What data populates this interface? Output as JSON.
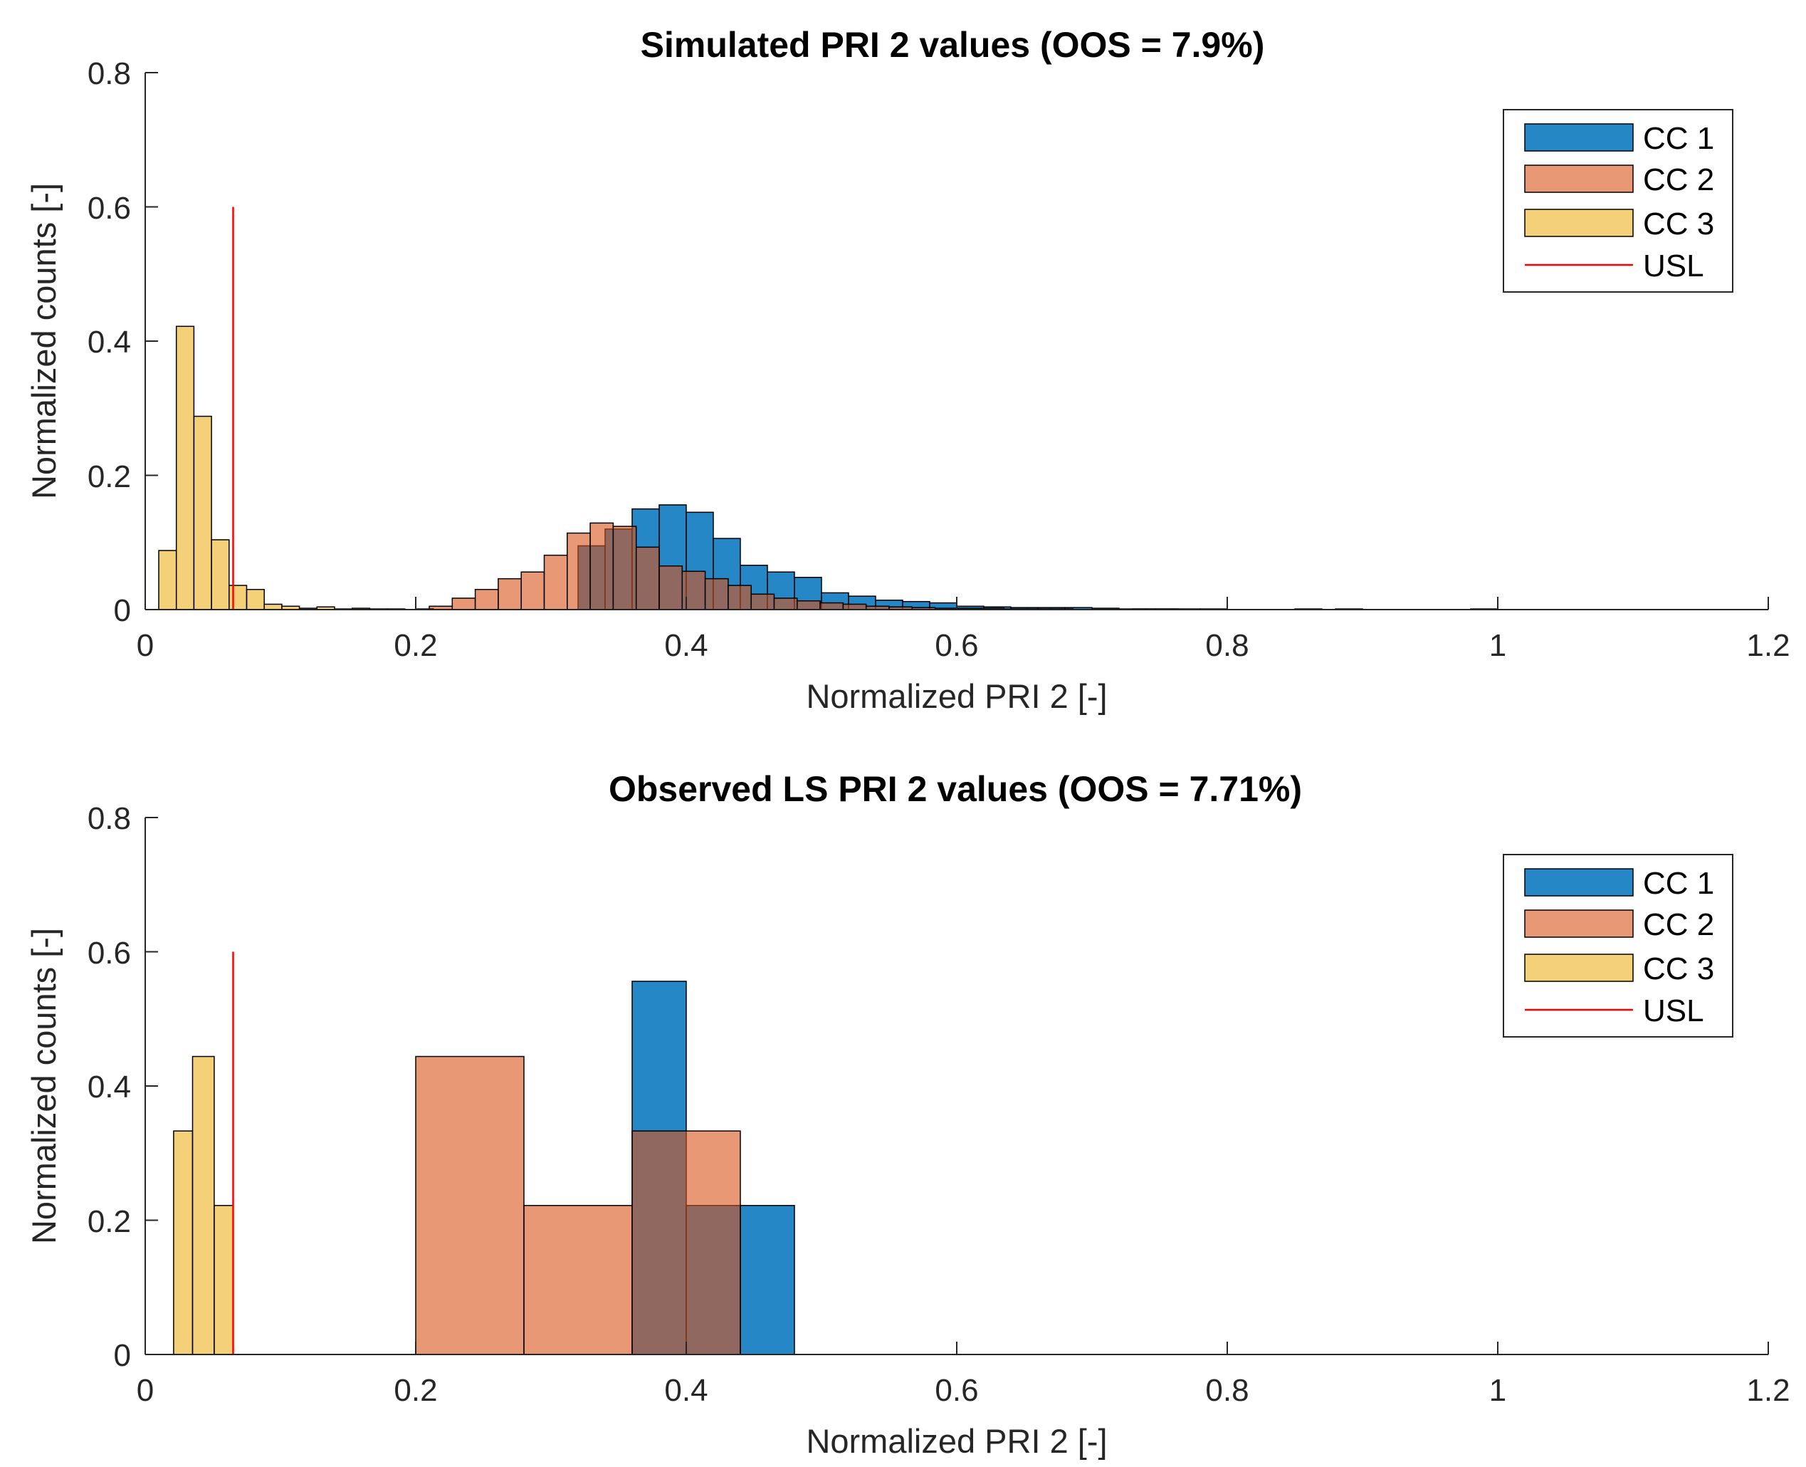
{
  "chart_data": [
    {
      "type": "bar",
      "title": "Simulated PRI 2 values (OOS = 7.9%)",
      "xlabel": "Normalized PRI 2 [-]",
      "ylabel": "Normalized counts [-]",
      "xlim": [
        0,
        1.2
      ],
      "ylim": [
        0,
        0.8
      ],
      "xticks": [
        "0",
        "0.2",
        "0.4",
        "0.6",
        "0.8",
        "1",
        "1.2"
      ],
      "yticks": [
        "0",
        "0.2",
        "0.4",
        "0.6",
        "0.8"
      ],
      "legend_position": "top-right",
      "usl": {
        "x": 0.065,
        "y_top": 0.6,
        "name": "USL"
      },
      "series": [
        {
          "name": "CC 1",
          "color": "#0072BD",
          "bins": [
            [
              0.32,
              0.34,
              0.095
            ],
            [
              0.34,
              0.36,
              0.12
            ],
            [
              0.36,
              0.38,
              0.15
            ],
            [
              0.38,
              0.4,
              0.156
            ],
            [
              0.4,
              0.42,
              0.145
            ],
            [
              0.42,
              0.44,
              0.106
            ],
            [
              0.44,
              0.46,
              0.066
            ],
            [
              0.46,
              0.48,
              0.056
            ],
            [
              0.48,
              0.5,
              0.048
            ],
            [
              0.5,
              0.52,
              0.025
            ],
            [
              0.52,
              0.54,
              0.02
            ],
            [
              0.54,
              0.56,
              0.014
            ],
            [
              0.56,
              0.58,
              0.012
            ],
            [
              0.58,
              0.6,
              0.01
            ],
            [
              0.6,
              0.62,
              0.005
            ],
            [
              0.62,
              0.64,
              0.004
            ],
            [
              0.64,
              0.66,
              0.003
            ],
            [
              0.66,
              0.68,
              0.003
            ],
            [
              0.68,
              0.7,
              0.003
            ],
            [
              0.7,
              0.72,
              0.002
            ],
            [
              0.72,
              0.74,
              0.001
            ],
            [
              0.74,
              0.76,
              0.001
            ],
            [
              0.76,
              0.78,
              0.001
            ],
            [
              0.78,
              0.8,
              0.001
            ],
            [
              0.85,
              0.87,
              0.001
            ],
            [
              0.88,
              0.9,
              0.001
            ],
            [
              0.98,
              1.0,
              0.001
            ]
          ]
        },
        {
          "name": "CC 2",
          "color": "#D95319",
          "bins": [
            [
              0.21,
              0.227,
              0.005
            ],
            [
              0.227,
              0.244,
              0.017
            ],
            [
              0.244,
              0.261,
              0.03
            ],
            [
              0.261,
              0.278,
              0.046
            ],
            [
              0.278,
              0.295,
              0.056
            ],
            [
              0.295,
              0.312,
              0.081
            ],
            [
              0.312,
              0.329,
              0.114
            ],
            [
              0.329,
              0.346,
              0.129
            ],
            [
              0.346,
              0.363,
              0.124
            ],
            [
              0.363,
              0.38,
              0.093
            ],
            [
              0.38,
              0.397,
              0.065
            ],
            [
              0.397,
              0.414,
              0.057
            ],
            [
              0.414,
              0.431,
              0.046
            ],
            [
              0.431,
              0.448,
              0.036
            ],
            [
              0.448,
              0.465,
              0.023
            ],
            [
              0.465,
              0.482,
              0.017
            ],
            [
              0.482,
              0.499,
              0.013
            ],
            [
              0.499,
              0.516,
              0.01
            ],
            [
              0.516,
              0.533,
              0.008
            ],
            [
              0.533,
              0.55,
              0.005
            ],
            [
              0.55,
              0.567,
              0.004
            ],
            [
              0.567,
              0.584,
              0.003
            ],
            [
              0.584,
              0.601,
              0.002
            ],
            [
              0.601,
              0.618,
              0.002
            ],
            [
              0.618,
              0.635,
              0.002
            ],
            [
              0.635,
              0.652,
              0.001
            ],
            [
              0.652,
              0.669,
              0.001
            ],
            [
              0.669,
              0.686,
              0.001
            ],
            [
              0.73,
              0.747,
              0.001
            ],
            [
              0.747,
              0.764,
              0.001
            ]
          ]
        },
        {
          "name": "CC 3",
          "color": "#EDB120",
          "bins": [
            [
              0.01,
              0.023,
              0.088
            ],
            [
              0.023,
              0.036,
              0.422
            ],
            [
              0.036,
              0.049,
              0.288
            ],
            [
              0.049,
              0.062,
              0.104
            ],
            [
              0.062,
              0.075,
              0.036
            ],
            [
              0.075,
              0.088,
              0.03
            ],
            [
              0.088,
              0.101,
              0.008
            ],
            [
              0.101,
              0.114,
              0.005
            ],
            [
              0.114,
              0.127,
              0.002
            ],
            [
              0.127,
              0.14,
              0.004
            ],
            [
              0.14,
              0.153,
              0.001
            ],
            [
              0.153,
              0.166,
              0.002
            ],
            [
              0.166,
              0.179,
              0.001
            ],
            [
              0.179,
              0.192,
              0.001
            ],
            [
              0.2,
              0.213,
              0.001
            ]
          ]
        }
      ]
    },
    {
      "type": "bar",
      "title": "Observed LS PRI 2 values (OOS = 7.71%)",
      "xlabel": "Normalized PRI 2 [-]",
      "ylabel": "Normalized counts [-]",
      "xlim": [
        0,
        1.2
      ],
      "ylim": [
        0,
        0.8
      ],
      "xticks": [
        "0",
        "0.2",
        "0.4",
        "0.6",
        "0.8",
        "1",
        "1.2"
      ],
      "yticks": [
        "0",
        "0.2",
        "0.4",
        "0.6",
        "0.8"
      ],
      "legend_position": "top-right",
      "usl": {
        "x": 0.065,
        "y_top": 0.6,
        "name": "USL"
      },
      "series": [
        {
          "name": "CC 1",
          "color": "#0072BD",
          "bins": [
            [
              0.36,
              0.4,
              0.556
            ],
            [
              0.4,
              0.44,
              0.222
            ],
            [
              0.44,
              0.48,
              0.222
            ]
          ]
        },
        {
          "name": "CC 2",
          "color": "#D95319",
          "bins": [
            [
              0.2,
              0.28,
              0.444
            ],
            [
              0.28,
              0.36,
              0.222
            ],
            [
              0.36,
              0.44,
              0.333
            ]
          ]
        },
        {
          "name": "CC 3",
          "color": "#EDB120",
          "bins": [
            [
              0.021,
              0.035,
              0.333
            ],
            [
              0.035,
              0.051,
              0.444
            ],
            [
              0.051,
              0.065,
              0.222
            ]
          ]
        }
      ]
    }
  ]
}
